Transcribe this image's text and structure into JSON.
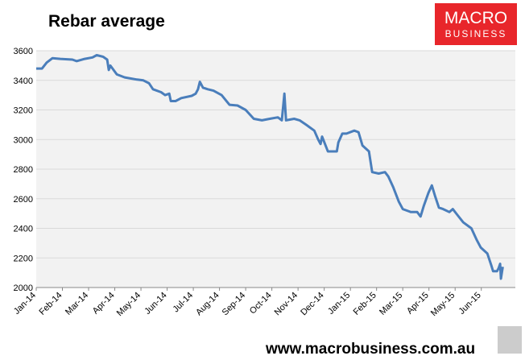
{
  "chart_data": {
    "type": "line",
    "title": "Rebar average",
    "logo": [
      "MACRO",
      "BUSINESS"
    ],
    "footer": "www.macrobusiness.com.au",
    "color": "#4a7ebb",
    "grid": true,
    "xlim": [
      0,
      18.3
    ],
    "ylim": [
      2000,
      3600
    ],
    "yticks": [
      2000,
      2200,
      2400,
      2600,
      2800,
      3000,
      3200,
      3400,
      3600
    ],
    "xticks": [
      {
        "value": 0,
        "label": "Jan-14"
      },
      {
        "value": 1,
        "label": "Feb-14"
      },
      {
        "value": 2,
        "label": "Mar-14"
      },
      {
        "value": 3,
        "label": "Apr-14"
      },
      {
        "value": 4,
        "label": "May-14"
      },
      {
        "value": 5,
        "label": "Jun-14"
      },
      {
        "value": 6,
        "label": "Jul-14"
      },
      {
        "value": 7,
        "label": "Aug-14"
      },
      {
        "value": 8,
        "label": "Sep-14"
      },
      {
        "value": 9,
        "label": "Oct-14"
      },
      {
        "value": 10,
        "label": "Nov-14"
      },
      {
        "value": 11,
        "label": "Dec-14"
      },
      {
        "value": 12,
        "label": "Jan-15"
      },
      {
        "value": 13,
        "label": "Feb-15"
      },
      {
        "value": 14,
        "label": "Mar-15"
      },
      {
        "value": 15,
        "label": "Apr-15"
      },
      {
        "value": 16,
        "label": "May-15"
      },
      {
        "value": 17,
        "label": "Jun-15"
      }
    ],
    "x": [
      0,
      0.22,
      0.4,
      0.62,
      0.92,
      1.38,
      1.54,
      1.85,
      2.15,
      2.31,
      2.55,
      2.71,
      2.77,
      2.83,
      3.08,
      3.38,
      3.85,
      4.09,
      4.31,
      4.46,
      4.77,
      4.92,
      5.08,
      5.14,
      5.32,
      5.54,
      5.94,
      6.09,
      6.18,
      6.25,
      6.37,
      6.55,
      6.77,
      7.08,
      7.38,
      7.69,
      8.0,
      8.31,
      8.62,
      8.92,
      9.23,
      9.38,
      9.48,
      9.54,
      9.85,
      10.06,
      10.31,
      10.62,
      10.77,
      10.86,
      10.92,
      11.05,
      11.14,
      11.48,
      11.54,
      11.69,
      11.85,
      12.15,
      12.31,
      12.46,
      12.71,
      12.83,
      13.08,
      13.32,
      13.45,
      13.63,
      13.85,
      14.0,
      14.31,
      14.55,
      14.68,
      14.8,
      14.98,
      15.11,
      15.23,
      15.38,
      15.54,
      15.78,
      15.91,
      16.09,
      16.31,
      16.62,
      16.83,
      16.98,
      17.23,
      17.38,
      17.45,
      17.6,
      17.66,
      17.72,
      17.75,
      17.82
    ],
    "values": [
      3480,
      3480,
      3520,
      3550,
      3545,
      3540,
      3530,
      3545,
      3555,
      3570,
      3560,
      3540,
      3470,
      3500,
      3440,
      3420,
      3405,
      3400,
      3380,
      3340,
      3320,
      3300,
      3310,
      3260,
      3260,
      3280,
      3295,
      3310,
      3340,
      3390,
      3350,
      3340,
      3330,
      3300,
      3235,
      3230,
      3200,
      3140,
      3130,
      3140,
      3150,
      3130,
      3310,
      3130,
      3140,
      3130,
      3100,
      3060,
      3000,
      2970,
      3020,
      2960,
      2920,
      2920,
      2980,
      3040,
      3040,
      3060,
      3050,
      2960,
      2920,
      2780,
      2770,
      2780,
      2750,
      2680,
      2580,
      2530,
      2510,
      2510,
      2480,
      2550,
      2640,
      2690,
      2620,
      2540,
      2530,
      2510,
      2530,
      2490,
      2440,
      2400,
      2320,
      2270,
      2230,
      2150,
      2110,
      2110,
      2130,
      2160,
      2060,
      2140
    ]
  }
}
